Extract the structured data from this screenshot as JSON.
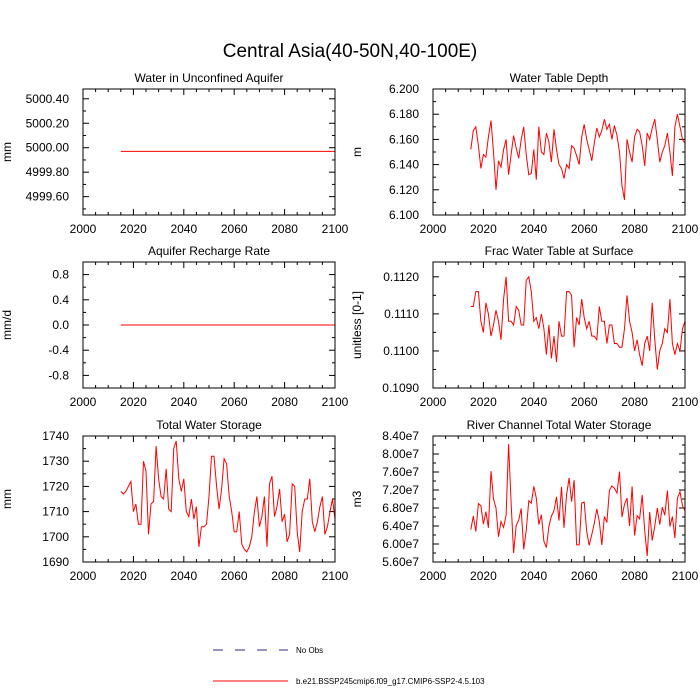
{
  "title": "Central Asia(40-50N,40-100E)",
  "legend": {
    "entries": [
      {
        "label": "No Obs",
        "style": "dashed",
        "color": "#3b2a8c"
      },
      {
        "label": "b.e21.BSSP245cmip6.f09_g17.CMIP6-SSP2-4.5.103",
        "style": "solid",
        "color": "#ff0000"
      }
    ]
  },
  "colors": {
    "series": "#ff0000",
    "obs": "#3b2a8c",
    "axis": "#000000"
  },
  "chart_data": [
    {
      "type": "line",
      "title": "Water in Unconfined Aquifer",
      "xlabel": "",
      "ylabel": "mm",
      "xlim": [
        2000,
        2100
      ],
      "ylim": [
        4999.45,
        5000.48
      ],
      "x_ticks": [
        2000,
        2020,
        2040,
        2060,
        2080,
        2100
      ],
      "x_tick_labels": [
        "2000",
        "2020",
        "2040",
        "2060",
        "2080",
        "2100"
      ],
      "y_ticks": [
        4999.6,
        4999.8,
        5000.0,
        5000.2,
        5000.4
      ],
      "y_tick_labels": [
        "4999.60",
        "4999.80",
        "5000.00",
        "5000.20",
        "5000.40"
      ],
      "series": [
        {
          "name": "b.e21.BSSP245cmip6.f09_g17.CMIP6-SSP2-4.5.103",
          "x_start": 2015,
          "x_step": 1,
          "values": [
            4999.97,
            4999.97,
            4999.97,
            4999.97,
            4999.97,
            4999.97,
            4999.97,
            4999.97,
            4999.97,
            4999.97,
            4999.97,
            4999.97,
            4999.97,
            4999.97,
            4999.97,
            4999.97,
            4999.97,
            4999.97,
            4999.97,
            4999.97,
            4999.97,
            4999.97,
            4999.97,
            4999.97,
            4999.97,
            4999.97,
            4999.97,
            4999.97,
            4999.97,
            4999.97,
            4999.97,
            4999.97,
            4999.97,
            4999.97,
            4999.97,
            4999.97,
            4999.97,
            4999.97,
            4999.97,
            4999.97,
            4999.97,
            4999.97,
            4999.97,
            4999.97,
            4999.97,
            4999.97,
            4999.97,
            4999.97,
            4999.97,
            4999.97,
            4999.97,
            4999.97,
            4999.97,
            4999.97,
            4999.97,
            4999.97,
            4999.97,
            4999.97,
            4999.97,
            4999.97,
            4999.97,
            4999.97,
            4999.97,
            4999.97,
            4999.97,
            4999.97,
            4999.97,
            4999.97,
            4999.97,
            4999.97,
            4999.97,
            4999.97,
            4999.97,
            4999.97,
            4999.97,
            4999.97,
            4999.97,
            4999.97,
            4999.97,
            4999.97,
            4999.97,
            4999.97,
            4999.97,
            4999.97,
            4999.97,
            4999.97
          ]
        }
      ]
    },
    {
      "type": "line",
      "title": "Water Table Depth",
      "xlabel": "",
      "ylabel": "m",
      "xlim": [
        2000,
        2100
      ],
      "ylim": [
        6.1,
        6.2
      ],
      "x_ticks": [
        2000,
        2020,
        2040,
        2060,
        2080,
        2100
      ],
      "x_tick_labels": [
        "2000",
        "2020",
        "2040",
        "2060",
        "2080",
        "2100"
      ],
      "y_ticks": [
        6.1,
        6.12,
        6.14,
        6.16,
        6.18,
        6.2
      ],
      "y_tick_labels": [
        "6.100",
        "6.120",
        "6.140",
        "6.160",
        "6.180",
        "6.200"
      ],
      "series": [
        {
          "name": "b.e21.BSSP245cmip6.f09_g17.CMIP6-SSP2-4.5.103",
          "x_start": 2015,
          "x_step": 1,
          "values": [
            6.152,
            6.167,
            6.17,
            6.155,
            6.137,
            6.148,
            6.146,
            6.162,
            6.175,
            6.15,
            6.12,
            6.143,
            6.138,
            6.152,
            6.16,
            6.132,
            6.148,
            6.163,
            6.153,
            6.145,
            6.16,
            6.17,
            6.148,
            6.132,
            6.133,
            6.152,
            6.128,
            6.17,
            6.15,
            6.148,
            6.165,
            6.158,
            6.142,
            6.168,
            6.152,
            6.14,
            6.137,
            6.129,
            6.14,
            6.137,
            6.155,
            6.153,
            6.147,
            6.14,
            6.162,
            6.172,
            6.16,
            6.152,
            6.143,
            6.157,
            6.169,
            6.162,
            6.167,
            6.176,
            6.168,
            6.172,
            6.16,
            6.171,
            6.163,
            6.15,
            6.123,
            6.112,
            6.16,
            6.15,
            6.142,
            6.162,
            6.168,
            6.166,
            6.155,
            6.139,
            6.165,
            6.16,
            6.169,
            6.176,
            6.16,
            6.142,
            6.15,
            6.155,
            6.165,
            6.15,
            6.131,
            6.17,
            6.18,
            6.17,
            6.16,
            6.157
          ]
        }
      ]
    },
    {
      "type": "line",
      "title": "Aquifer Recharge Rate",
      "xlabel": "",
      "ylabel": "mm/d",
      "xlim": [
        2000,
        2100
      ],
      "ylim": [
        -1.0,
        1.0
      ],
      "x_ticks": [
        2000,
        2020,
        2040,
        2060,
        2080,
        2100
      ],
      "x_tick_labels": [
        "2000",
        "2020",
        "2040",
        "2060",
        "2080",
        "2100"
      ],
      "y_ticks": [
        -0.8,
        -0.4,
        0.0,
        0.4,
        0.8
      ],
      "y_tick_labels": [
        "-0.8",
        "-0.4",
        "0.0",
        "0.4",
        "0.8"
      ],
      "series": [
        {
          "name": "b.e21.BSSP245cmip6.f09_g17.CMIP6-SSP2-4.5.103",
          "x_start": 2015,
          "x_step": 1,
          "values": [
            0,
            0,
            0,
            0,
            0,
            0,
            0,
            0,
            0,
            0,
            0,
            0,
            0,
            0,
            0,
            0,
            0,
            0,
            0,
            0,
            0,
            0,
            0,
            0,
            0,
            0,
            0,
            0,
            0,
            0,
            0,
            0,
            0,
            0,
            0,
            0,
            0,
            0,
            0,
            0,
            0,
            0,
            0,
            0,
            0,
            0,
            0,
            0,
            0,
            0,
            0,
            0,
            0,
            0,
            0,
            0,
            0,
            0,
            0,
            0,
            0,
            0,
            0,
            0,
            0,
            0,
            0,
            0,
            0,
            0,
            0,
            0,
            0,
            0,
            0,
            0,
            0,
            0,
            0,
            0,
            0,
            0,
            0,
            0,
            0,
            0
          ]
        }
      ]
    },
    {
      "type": "line",
      "title": "Frac Water Table at Surface",
      "xlabel": "",
      "ylabel": "unitless [0-1]",
      "xlim": [
        2000,
        2100
      ],
      "ylim": [
        0.109,
        0.1124
      ],
      "x_ticks": [
        2000,
        2020,
        2040,
        2060,
        2080,
        2100
      ],
      "x_tick_labels": [
        "2000",
        "2020",
        "2040",
        "2060",
        "2080",
        "2100"
      ],
      "y_ticks": [
        0.109,
        0.11,
        0.111,
        0.112
      ],
      "y_tick_labels": [
        "0.1090",
        "0.1100",
        "0.1110",
        "0.1120"
      ],
      "series": [
        {
          "name": "b.e21.BSSP245cmip6.f09_g17.CMIP6-SSP2-4.5.103",
          "x_start": 2015,
          "x_step": 1,
          "values": [
            0.1112,
            0.1112,
            0.1116,
            0.1116,
            0.1108,
            0.1105,
            0.1113,
            0.111,
            0.1104,
            0.1107,
            0.1111,
            0.1108,
            0.1103,
            0.1114,
            0.112,
            0.1108,
            0.1108,
            0.1107,
            0.1112,
            0.1111,
            0.1107,
            0.1107,
            0.1119,
            0.112,
            0.1116,
            0.1108,
            0.1109,
            0.1106,
            0.111,
            0.1106,
            0.1099,
            0.1107,
            0.1098,
            0.1104,
            0.1097,
            0.1108,
            0.1104,
            0.1104,
            0.1116,
            0.1116,
            0.1115,
            0.1101,
            0.1109,
            0.1107,
            0.1114,
            0.1109,
            0.1106,
            0.1108,
            0.1104,
            0.1104,
            0.1103,
            0.1112,
            0.1108,
            0.1108,
            0.1102,
            0.1107,
            0.1107,
            0.1102,
            0.1102,
            0.1101,
            0.1101,
            0.1106,
            0.1115,
            0.1108,
            0.1105,
            0.11,
            0.1103,
            0.1099,
            0.1096,
            0.1102,
            0.1104,
            0.11,
            0.1113,
            0.1103,
            0.1095,
            0.11,
            0.1102,
            0.1106,
            0.1105,
            0.1114,
            0.1102,
            0.1099,
            0.1102,
            0.11,
            0.1106,
            0.1108
          ]
        }
      ]
    },
    {
      "type": "line",
      "title": "Total Water Storage",
      "xlabel": "",
      "ylabel": "mm",
      "xlim": [
        2000,
        2100
      ],
      "ylim": [
        1690,
        1740
      ],
      "x_ticks": [
        2000,
        2020,
        2040,
        2060,
        2080,
        2100
      ],
      "x_tick_labels": [
        "2000",
        "2020",
        "2040",
        "2060",
        "2080",
        "2100"
      ],
      "y_ticks": [
        1690,
        1700,
        1710,
        1720,
        1730,
        1740
      ],
      "y_tick_labels": [
        "1690",
        "1700",
        "1710",
        "1720",
        "1730",
        "1740"
      ],
      "series": [
        {
          "name": "b.e21.BSSP245cmip6.f09_g17.CMIP6-SSP2-4.5.103",
          "x_start": 2015,
          "x_step": 1,
          "values": [
            1718,
            1717,
            1718,
            1720,
            1722,
            1710,
            1713,
            1705,
            1705,
            1730,
            1726,
            1701,
            1713,
            1714,
            1736,
            1723,
            1716,
            1715,
            1727,
            1711,
            1710,
            1735,
            1738,
            1723,
            1718,
            1723,
            1710,
            1708,
            1715,
            1707,
            1712,
            1696,
            1704,
            1704,
            1705,
            1716,
            1732,
            1732,
            1720,
            1711,
            1719,
            1731,
            1729,
            1716,
            1710,
            1702,
            1702,
            1710,
            1697,
            1695,
            1694,
            1696,
            1700,
            1710,
            1716,
            1704,
            1708,
            1716,
            1696,
            1721,
            1724,
            1708,
            1712,
            1719,
            1706,
            1709,
            1698,
            1701,
            1721,
            1720,
            1702,
            1694,
            1710,
            1715,
            1715,
            1723,
            1706,
            1702,
            1706,
            1712,
            1716,
            1701,
            1704,
            1710,
            1715,
            1707
          ]
        }
      ]
    },
    {
      "type": "line",
      "title": "River Channel Total Water Storage",
      "xlabel": "",
      "ylabel": "m3",
      "xlim": [
        2000,
        2100
      ],
      "ylim": [
        56000000,
        84000000
      ],
      "x_ticks": [
        2000,
        2020,
        2040,
        2060,
        2080,
        2100
      ],
      "x_tick_labels": [
        "2000",
        "2020",
        "2040",
        "2060",
        "2080",
        "2100"
      ],
      "y_ticks": [
        56000000,
        60000000,
        64000000,
        68000000,
        72000000,
        76000000,
        80000000,
        84000000
      ],
      "y_tick_labels": [
        "5.60e7",
        "6.00e7",
        "6.40e7",
        "6.80e7",
        "7.20e7",
        "7.60e7",
        "8.00e7",
        "8.40e7"
      ],
      "series": [
        {
          "name": "b.e21.BSSP245cmip6.f09_g17.CMIP6-SSP2-4.5.103",
          "x_start": 2015,
          "x_step": 1,
          "values": [
            63200000,
            66200000,
            62800000,
            69000000,
            68500000,
            64400000,
            67200000,
            63600000,
            76200000,
            70000000,
            68000000,
            61600000,
            65000000,
            63700000,
            66400000,
            82200000,
            69200000,
            58000000,
            64100000,
            65300000,
            67900000,
            58800000,
            63000000,
            69600000,
            69100000,
            72800000,
            70200000,
            64300000,
            66500000,
            60600000,
            59200000,
            63900000,
            66200000,
            67400000,
            70500000,
            65200000,
            72700000,
            63600000,
            71000000,
            74700000,
            69400000,
            74200000,
            59800000,
            59800000,
            69100000,
            69300000,
            62800000,
            59700000,
            62100000,
            64600000,
            67800000,
            65000000,
            59800000,
            66100000,
            64800000,
            71900000,
            72900000,
            72400000,
            71300000,
            76100000,
            66000000,
            68800000,
            70200000,
            64000000,
            72800000,
            61900000,
            66300000,
            65600000,
            70900000,
            63000000,
            57300000,
            67100000,
            60800000,
            64000000,
            68000000,
            64300000,
            68200000,
            66400000,
            71900000,
            63900000,
            66100000,
            61300000,
            70200000,
            71600000,
            68500000,
            67400000
          ]
        }
      ]
    }
  ]
}
